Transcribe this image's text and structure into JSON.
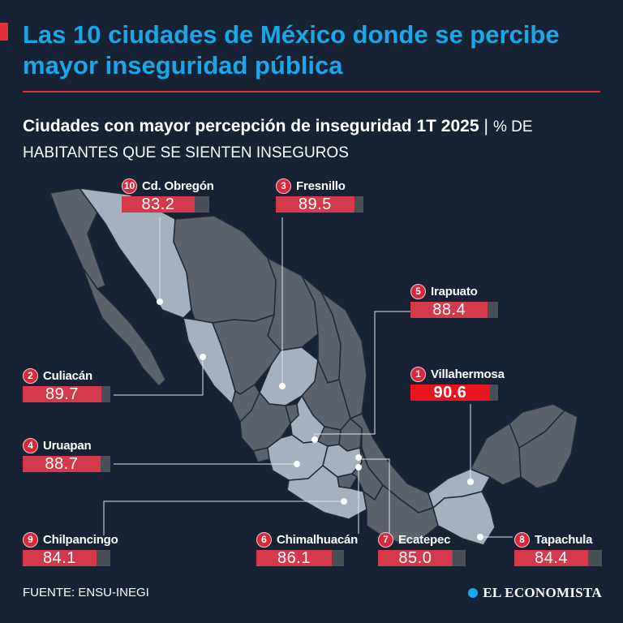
{
  "header": {
    "title": "Las 10 ciudades de México donde se percibe mayor inseguridad pública",
    "subtitle": "Ciudades con mayor percepción de inseguridad 1T 2025",
    "separator": "|",
    "unit": "% DE HABITANTES QUE SE SIENTEN INSEGUROS"
  },
  "colors": {
    "title": "#1aa7e8",
    "accent": "#e0303e",
    "highlight_state": "#a6b1c0",
    "other_state": "#5c626c",
    "bar_fill": "#d43a4c",
    "bar_top": "#e8141e"
  },
  "cities": [
    {
      "rank": "1",
      "name": "Villahermosa",
      "value": "90.6",
      "pct": 90.6
    },
    {
      "rank": "2",
      "name": "Culiacán",
      "value": "89.7",
      "pct": 89.7
    },
    {
      "rank": "3",
      "name": "Fresnillo",
      "value": "89.5",
      "pct": 89.5
    },
    {
      "rank": "4",
      "name": "Uruapan",
      "value": "88.7",
      "pct": 88.7
    },
    {
      "rank": "5",
      "name": "Irapuato",
      "value": "88.4",
      "pct": 88.4
    },
    {
      "rank": "6",
      "name": "Chimalhuacán",
      "value": "86.1",
      "pct": 86.1
    },
    {
      "rank": "7",
      "name": "Ecatepec",
      "value": "85.0",
      "pct": 85.0
    },
    {
      "rank": "8",
      "name": "Tapachula",
      "value": "84.4",
      "pct": 84.4
    },
    {
      "rank": "9",
      "name": "Chilpancingo",
      "value": "84.1",
      "pct": 84.1
    },
    {
      "rank": "10",
      "name": "Cd. Obregón",
      "value": "83.2",
      "pct": 83.2
    }
  ],
  "footer": {
    "source": "FUENTE: ENSU-INEGI",
    "brand": "EL ECONOMISTA"
  }
}
